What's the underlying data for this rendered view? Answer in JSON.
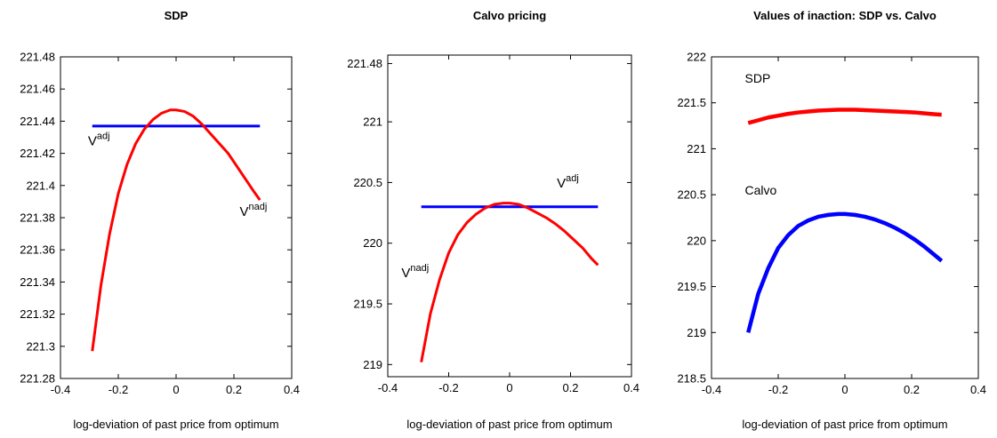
{
  "chart_data": [
    {
      "type": "line",
      "title": "SDP",
      "xlabel": "log-deviation of past price from optimum",
      "ylabel": "",
      "xlim": [
        -0.4,
        0.4
      ],
      "ylim": [
        221.28,
        221.48
      ],
      "xticks": [
        -0.4,
        -0.2,
        0,
        0.2,
        0.4
      ],
      "xtick_labels": [
        "-0.4",
        "-0.2",
        "0",
        "0.2",
        "0.4"
      ],
      "yticks": [
        221.28,
        221.3,
        221.32,
        221.34,
        221.36,
        221.38,
        221.4,
        221.42,
        221.44,
        221.46,
        221.48
      ],
      "ytick_labels": [
        "221.28",
        "221.3",
        "221.32",
        "221.34",
        "221.36",
        "221.38",
        "221.4",
        "221.42",
        "221.44",
        "221.46",
        "221.48"
      ],
      "grid": false,
      "series": [
        {
          "label_base": "V",
          "label_sup": "adj",
          "color": "#0000ff",
          "width": 3,
          "x": [
            -0.29,
            0.29
          ],
          "y": [
            221.437,
            221.437
          ]
        },
        {
          "label_base": "V",
          "label_sup": "nadj",
          "color": "#ff0000",
          "width": 3,
          "x": [
            -0.29,
            -0.26,
            -0.23,
            -0.2,
            -0.17,
            -0.14,
            -0.11,
            -0.08,
            -0.05,
            -0.02,
            0,
            0.03,
            0.06,
            0.09,
            0.12,
            0.15,
            0.18,
            0.21,
            0.24,
            0.27,
            0.29
          ],
          "y": [
            221.297,
            221.338,
            221.37,
            221.395,
            221.413,
            221.426,
            221.435,
            221.441,
            221.445,
            221.447,
            221.447,
            221.446,
            221.443,
            221.438,
            221.432,
            221.426,
            221.42,
            221.412,
            221.404,
            221.396,
            221.391
          ]
        }
      ],
      "annotations": [
        {
          "series": 0,
          "x": -0.305,
          "y": 221.425
        },
        {
          "series": 1,
          "x": 0.22,
          "y": 221.381
        }
      ]
    },
    {
      "type": "line",
      "title": "Calvo pricing",
      "xlabel": "log-deviation of past price from optimum",
      "ylabel": "",
      "xlim": [
        -0.4,
        0.4
      ],
      "ylim": [
        218.9,
        221.55
      ],
      "xticks": [
        -0.4,
        -0.2,
        0,
        0.2,
        0.4
      ],
      "xtick_labels": [
        "-0.4",
        "-0.2",
        "0",
        "0.2",
        "0.4"
      ],
      "yticks": [
        219,
        219.5,
        220,
        220.5,
        221,
        221.48
      ],
      "ytick_labels": [
        "219",
        "219.5",
        "220",
        "220.5",
        "221",
        "221.48"
      ],
      "grid": false,
      "series": [
        {
          "label_base": "V",
          "label_sup": "adj",
          "color": "#0000ff",
          "width": 3,
          "x": [
            -0.29,
            0.29
          ],
          "y": [
            220.3,
            220.3
          ]
        },
        {
          "label_base": "V",
          "label_sup": "nadj",
          "color": "#ff0000",
          "width": 3,
          "x": [
            -0.29,
            -0.26,
            -0.23,
            -0.2,
            -0.17,
            -0.14,
            -0.11,
            -0.08,
            -0.05,
            -0.02,
            0,
            0.03,
            0.06,
            0.09,
            0.12,
            0.15,
            0.18,
            0.21,
            0.24,
            0.27,
            0.29
          ],
          "y": [
            219.02,
            219.42,
            219.7,
            219.92,
            220.07,
            220.17,
            220.24,
            220.29,
            220.32,
            220.33,
            220.33,
            220.32,
            220.29,
            220.25,
            220.21,
            220.16,
            220.1,
            220.03,
            219.96,
            219.87,
            219.82
          ]
        }
      ],
      "annotations": [
        {
          "series": 0,
          "x": 0.155,
          "y": 220.46
        },
        {
          "series": 1,
          "x": -0.355,
          "y": 219.72
        }
      ]
    },
    {
      "type": "line",
      "title": "Values of inaction: SDP vs. Calvo",
      "xlabel": "log-deviation of past price from optimum",
      "ylabel": "",
      "xlim": [
        -0.4,
        0.4
      ],
      "ylim": [
        218.5,
        222
      ],
      "xticks": [
        -0.4,
        -0.2,
        0,
        0.2,
        0.4
      ],
      "xtick_labels": [
        "-0.4",
        "-0.2",
        "0",
        "0.2",
        "0.4"
      ],
      "yticks": [
        218.5,
        219,
        219.5,
        220,
        220.5,
        221,
        221.5,
        222
      ],
      "ytick_labels": [
        "218.5",
        "219",
        "219.5",
        "220",
        "220.5",
        "221",
        "221.5",
        "222"
      ],
      "grid": false,
      "series": [
        {
          "name": "SDP",
          "color": "#ff0000",
          "width": 4.5,
          "x": [
            -0.29,
            -0.26,
            -0.23,
            -0.2,
            -0.17,
            -0.14,
            -0.11,
            -0.08,
            -0.05,
            -0.02,
            0,
            0.03,
            0.06,
            0.09,
            0.12,
            0.15,
            0.18,
            0.21,
            0.24,
            0.27,
            0.29
          ],
          "y": [
            221.28,
            221.31,
            221.34,
            221.36,
            221.38,
            221.395,
            221.405,
            221.415,
            221.42,
            221.425,
            221.425,
            221.425,
            221.42,
            221.415,
            221.41,
            221.405,
            221.4,
            221.395,
            221.385,
            221.375,
            221.37
          ]
        },
        {
          "name": "Calvo",
          "color": "#0000ff",
          "width": 4.5,
          "x": [
            -0.29,
            -0.26,
            -0.23,
            -0.2,
            -0.17,
            -0.14,
            -0.11,
            -0.08,
            -0.05,
            -0.02,
            0,
            0.03,
            0.06,
            0.09,
            0.12,
            0.15,
            0.18,
            0.21,
            0.24,
            0.27,
            0.29
          ],
          "y": [
            219.0,
            219.42,
            219.7,
            219.92,
            220.06,
            220.16,
            220.22,
            220.26,
            220.28,
            220.29,
            220.29,
            220.28,
            220.26,
            220.23,
            220.19,
            220.14,
            220.08,
            220.01,
            219.93,
            219.84,
            219.78
          ]
        }
      ],
      "annotations": [
        {
          "series": 0,
          "x": -0.3,
          "y": 221.72
        },
        {
          "series": 1,
          "x": -0.3,
          "y": 220.5
        }
      ]
    }
  ]
}
